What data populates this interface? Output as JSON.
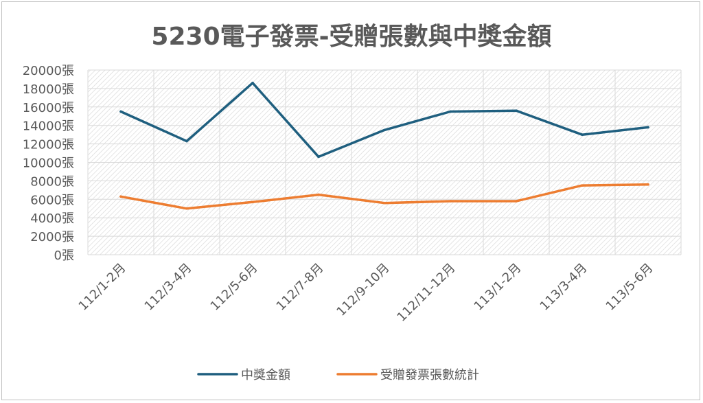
{
  "chart_data": {
    "type": "line",
    "title": "5230電子發票-受贈張數與中獎金額",
    "xlabel": "",
    "ylabel": "",
    "categories": [
      "112/1-2月",
      "112/3-4月",
      "112/5-6月",
      "112/7-8月",
      "112/9-10月",
      "112/11-12月",
      "113/1-2月",
      "113/3-4月",
      "113/5-6月"
    ],
    "y_ticks": [
      "0張",
      "2000張",
      "4000張",
      "6000張",
      "8000張",
      "10000張",
      "12000張",
      "14000張",
      "16000張",
      "18000張",
      "20000張"
    ],
    "ylim": [
      0,
      20000
    ],
    "grid": true,
    "legend_position": "bottom",
    "series": [
      {
        "name": "中獎金額",
        "color": "#1f5f7f",
        "values": [
          15500,
          12300,
          18600,
          10600,
          13500,
          15500,
          15600,
          13000,
          13800
        ]
      },
      {
        "name": "受贈發票張數統計",
        "color": "#ed7d31",
        "values": [
          6300,
          5000,
          5700,
          6500,
          5600,
          5800,
          5800,
          7500,
          7600
        ]
      }
    ]
  }
}
